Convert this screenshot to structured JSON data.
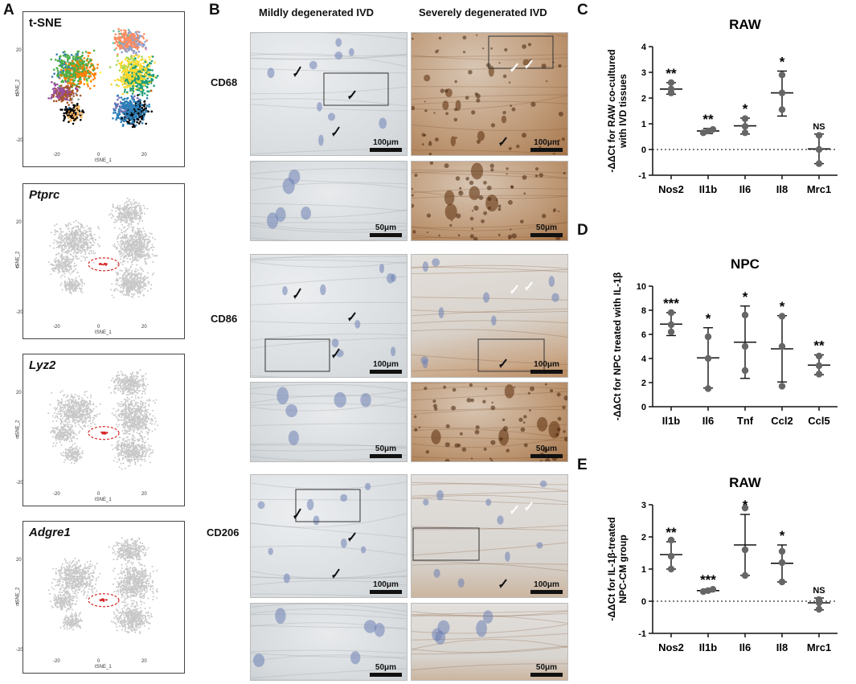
{
  "panels": {
    "A": {
      "letter": "A"
    },
    "B": {
      "letter": "B"
    },
    "C": {
      "letter": "C"
    },
    "D": {
      "letter": "D"
    },
    "E": {
      "letter": "E"
    }
  },
  "tsne": {
    "plots": [
      {
        "title": "t-SNE",
        "italic": false,
        "colored": true
      },
      {
        "title": "Ptprc",
        "italic": true,
        "colored": false
      },
      {
        "title": "Lyz2",
        "italic": true,
        "colored": false
      },
      {
        "title": "Adgre1",
        "italic": true,
        "colored": false
      }
    ],
    "xlabel": "tSNE_1",
    "ylabel": "tSNE_2",
    "xticks": [
      "-20",
      "0",
      "20"
    ],
    "yticks": [
      "20",
      "0",
      "-20"
    ],
    "cluster_colors": [
      "#e41a1c",
      "#f781bf",
      "#377eb8",
      "#4daf4a",
      "#ff7f00",
      "#ffff33",
      "#984ea3",
      "#a65628",
      "#999999",
      "#66c2a5",
      "#fc8d62",
      "#8da0cb",
      "#e78ac3",
      "#a6d854",
      "#ffd92f",
      "#1b9e77",
      "#d95f02",
      "#7570b3",
      "#2c7fb8",
      "#000000",
      "#fdb863",
      "#b2df8a"
    ],
    "highlight_color": "#d62728"
  },
  "histology": {
    "col_headers": [
      "Mildly degenerated IVD",
      "Severely degenerated IVD"
    ],
    "rows": [
      "CD68",
      "CD86",
      "CD206"
    ],
    "scale_100": "100μm",
    "scale_50": "50μm"
  },
  "chart_data": [
    {
      "panel": "C",
      "type": "scatter",
      "title": "RAW",
      "ylabel": "-ΔΔCt for RAW co-cultured with IVD tissues",
      "categories": [
        "Nos2",
        "Il1b",
        "Il6",
        "Il8",
        "Mrc1"
      ],
      "points": [
        [
          2.2,
          2.35,
          2.6
        ],
        [
          0.65,
          0.72,
          0.78
        ],
        [
          0.65,
          0.9,
          1.2
        ],
        [
          1.55,
          2.2,
          2.9
        ],
        [
          -0.55,
          0.0,
          0.55
        ]
      ],
      "mean": [
        2.35,
        0.72,
        0.92,
        2.2,
        0.02
      ],
      "sd_low": [
        2.15,
        0.62,
        0.6,
        1.3,
        -0.55
      ],
      "sd_high": [
        2.6,
        0.82,
        1.22,
        3.05,
        0.6
      ],
      "significance": [
        "**",
        "**",
        "*",
        "*",
        "NS"
      ],
      "ylim": [
        -1,
        4
      ],
      "yticks": [
        "-1",
        "0",
        "1",
        "2",
        "3",
        "4"
      ],
      "baseline": 0
    },
    {
      "panel": "D",
      "type": "scatter",
      "title": "NPC",
      "ylabel": "-ΔΔCt for NPC treated with IL-1β",
      "categories": [
        "Il1b",
        "Il6",
        "Tnf",
        "Ccl2",
        "Ccl5"
      ],
      "points": [
        [
          6.2,
          6.8,
          7.8
        ],
        [
          1.5,
          4.0,
          5.8
        ],
        [
          3.0,
          5.0,
          7.6
        ],
        [
          1.7,
          5.0,
          7.5
        ],
        [
          2.7,
          3.4,
          4.2
        ]
      ],
      "mean": [
        6.85,
        4.05,
        5.35,
        4.8,
        3.45
      ],
      "sd_low": [
        5.9,
        1.55,
        2.35,
        2.05,
        2.65
      ],
      "sd_high": [
        7.8,
        6.55,
        8.35,
        7.55,
        4.3
      ],
      "significance": [
        "***",
        "*",
        "*",
        "*",
        "**"
      ],
      "ylim": [
        0,
        10
      ],
      "yticks": [
        "0",
        "2",
        "4",
        "6",
        "8",
        "10"
      ]
    },
    {
      "panel": "E",
      "type": "scatter",
      "title": "RAW",
      "ylabel": "-ΔΔCt  for IL-1β-treated NPC-CM group",
      "categories": [
        "Nos2",
        "Il1b",
        "Il6",
        "Il8",
        "Mrc1"
      ],
      "points": [
        [
          1.0,
          1.4,
          1.9
        ],
        [
          0.3,
          0.33,
          0.37
        ],
        [
          0.8,
          1.6,
          2.9
        ],
        [
          0.6,
          1.2,
          1.55
        ],
        [
          -0.25,
          -0.05,
          0.05
        ]
      ],
      "mean": [
        1.45,
        0.33,
        1.75,
        1.18,
        -0.05
      ],
      "sd_low": [
        1.0,
        0.29,
        0.8,
        0.6,
        -0.27
      ],
      "sd_high": [
        1.85,
        0.38,
        2.7,
        1.75,
        0.1
      ],
      "significance": [
        "**",
        "***",
        "*",
        "*",
        "NS"
      ],
      "ylim": [
        -1,
        3
      ],
      "yticks": [
        "-1",
        "0",
        "1",
        "2",
        "3"
      ],
      "baseline": 0
    }
  ]
}
